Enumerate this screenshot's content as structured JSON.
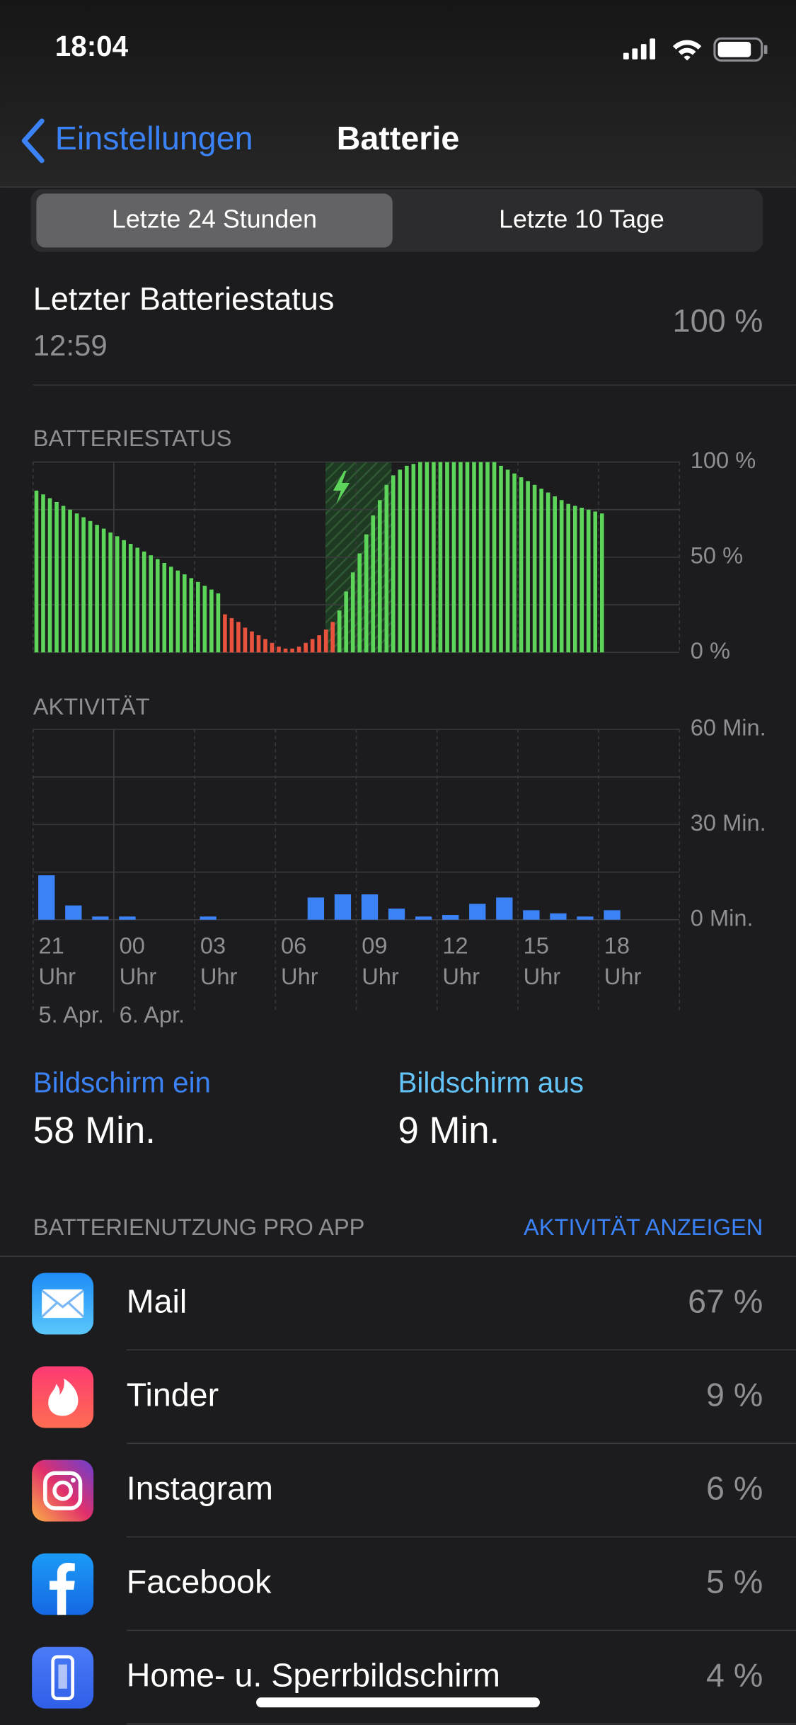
{
  "status_bar": {
    "time": "18:04"
  },
  "nav": {
    "back": "Einstellungen",
    "title": "Batterie"
  },
  "segments": [
    "Letzte 24 Stunden",
    "Letzte 10 Tage"
  ],
  "last_status": {
    "label": "Letzter Batteriestatus",
    "time": "12:59",
    "value": "100 %"
  },
  "chart_data": [
    {
      "type": "bar",
      "title": "BATTERIESTATUS",
      "ylim": [
        0,
        100
      ],
      "yticks": [
        {
          "value": 0,
          "label": "0 %"
        },
        {
          "value": 25,
          "label": null
        },
        {
          "value": 50,
          "label": "50 %"
        },
        {
          "value": 75,
          "label": null
        },
        {
          "value": 100,
          "label": "100 %"
        }
      ],
      "grid": true,
      "series": [
        {
          "color": "#5dd55b",
          "values": [
            85,
            83,
            81,
            79,
            77,
            75,
            73,
            71,
            69,
            67,
            65,
            63,
            61,
            59,
            57,
            55,
            53,
            51,
            49,
            47,
            45,
            43,
            41,
            39,
            37,
            35,
            33,
            31,
            null,
            null,
            null,
            null,
            null,
            null,
            null,
            null,
            null,
            null,
            null,
            null,
            null,
            null,
            null,
            null,
            null,
            22,
            32,
            42,
            52,
            62,
            72,
            80,
            88,
            93,
            96,
            98,
            99,
            100,
            100,
            100,
            100,
            100,
            100,
            100,
            100,
            100,
            100,
            100,
            100,
            98,
            96,
            94,
            92,
            90,
            88,
            86,
            84,
            82,
            80,
            78,
            77,
            76,
            75,
            74,
            73
          ]
        },
        {
          "color": "#e9533e",
          "values": [
            null,
            null,
            null,
            null,
            null,
            null,
            null,
            null,
            null,
            null,
            null,
            null,
            null,
            null,
            null,
            null,
            null,
            null,
            null,
            null,
            null,
            null,
            null,
            null,
            null,
            null,
            null,
            null,
            20,
            18,
            16,
            13,
            11,
            9,
            7,
            5,
            3,
            2,
            2,
            3,
            5,
            7,
            9,
            12,
            16,
            null,
            null,
            null,
            null,
            null,
            null,
            null,
            null,
            null,
            null,
            null,
            null,
            null,
            null,
            null,
            null,
            null,
            null,
            null,
            null,
            null,
            null,
            null,
            null,
            null,
            null,
            null,
            null,
            null,
            null,
            null,
            null,
            null,
            null,
            null,
            null,
            null,
            null,
            null,
            null
          ]
        }
      ]
    },
    {
      "type": "bar",
      "title": "AKTIVITÄT",
      "categories": [
        "21 Uhr",
        null,
        null,
        "00 Uhr",
        null,
        null,
        "03 Uhr",
        null,
        null,
        "06 Uhr",
        null,
        null,
        "09 Uhr",
        null,
        null,
        "12 Uhr",
        null,
        null,
        "15 Uhr",
        null,
        null,
        "18 Uhr",
        null,
        null
      ],
      "date_labels": [
        "5. Apr.",
        null,
        null,
        "6. Apr.",
        null,
        null,
        null,
        null,
        null,
        null,
        null,
        null,
        null,
        null,
        null,
        null,
        null,
        null,
        null,
        null,
        null,
        null,
        null,
        null
      ],
      "values": [
        14,
        4.5,
        1,
        1,
        0,
        0,
        1,
        0,
        0,
        0,
        7,
        8,
        8,
        3.5,
        1,
        1.5,
        5,
        7,
        3,
        2,
        1,
        3,
        0,
        0
      ],
      "color": "#3b82f7",
      "ylim": [
        0,
        60
      ],
      "yticks": [
        {
          "value": 0,
          "label": "0 Min."
        },
        {
          "value": 15,
          "label": null
        },
        {
          "value": 30,
          "label": "30 Min."
        },
        {
          "value": 45,
          "label": null
        },
        {
          "value": 60,
          "label": "60 Min."
        }
      ],
      "grid": true
    }
  ],
  "screen": {
    "on_label": "Bildschirm ein",
    "on_value": "58 Min.",
    "off_label": "Bildschirm aus",
    "off_value": "9 Min."
  },
  "usage": {
    "header": "BATTERIENUTZUNG PRO APP",
    "action": "AKTIVITÄT ANZEIGEN",
    "apps": [
      {
        "name": "Mail",
        "value": "67 %"
      },
      {
        "name": "Tinder",
        "value": "9 %"
      },
      {
        "name": "Instagram",
        "value": "6 %"
      },
      {
        "name": "Facebook",
        "value": "5 %"
      },
      {
        "name": "Home- u. Sperrbildschirm",
        "value": "4 %"
      }
    ]
  }
}
